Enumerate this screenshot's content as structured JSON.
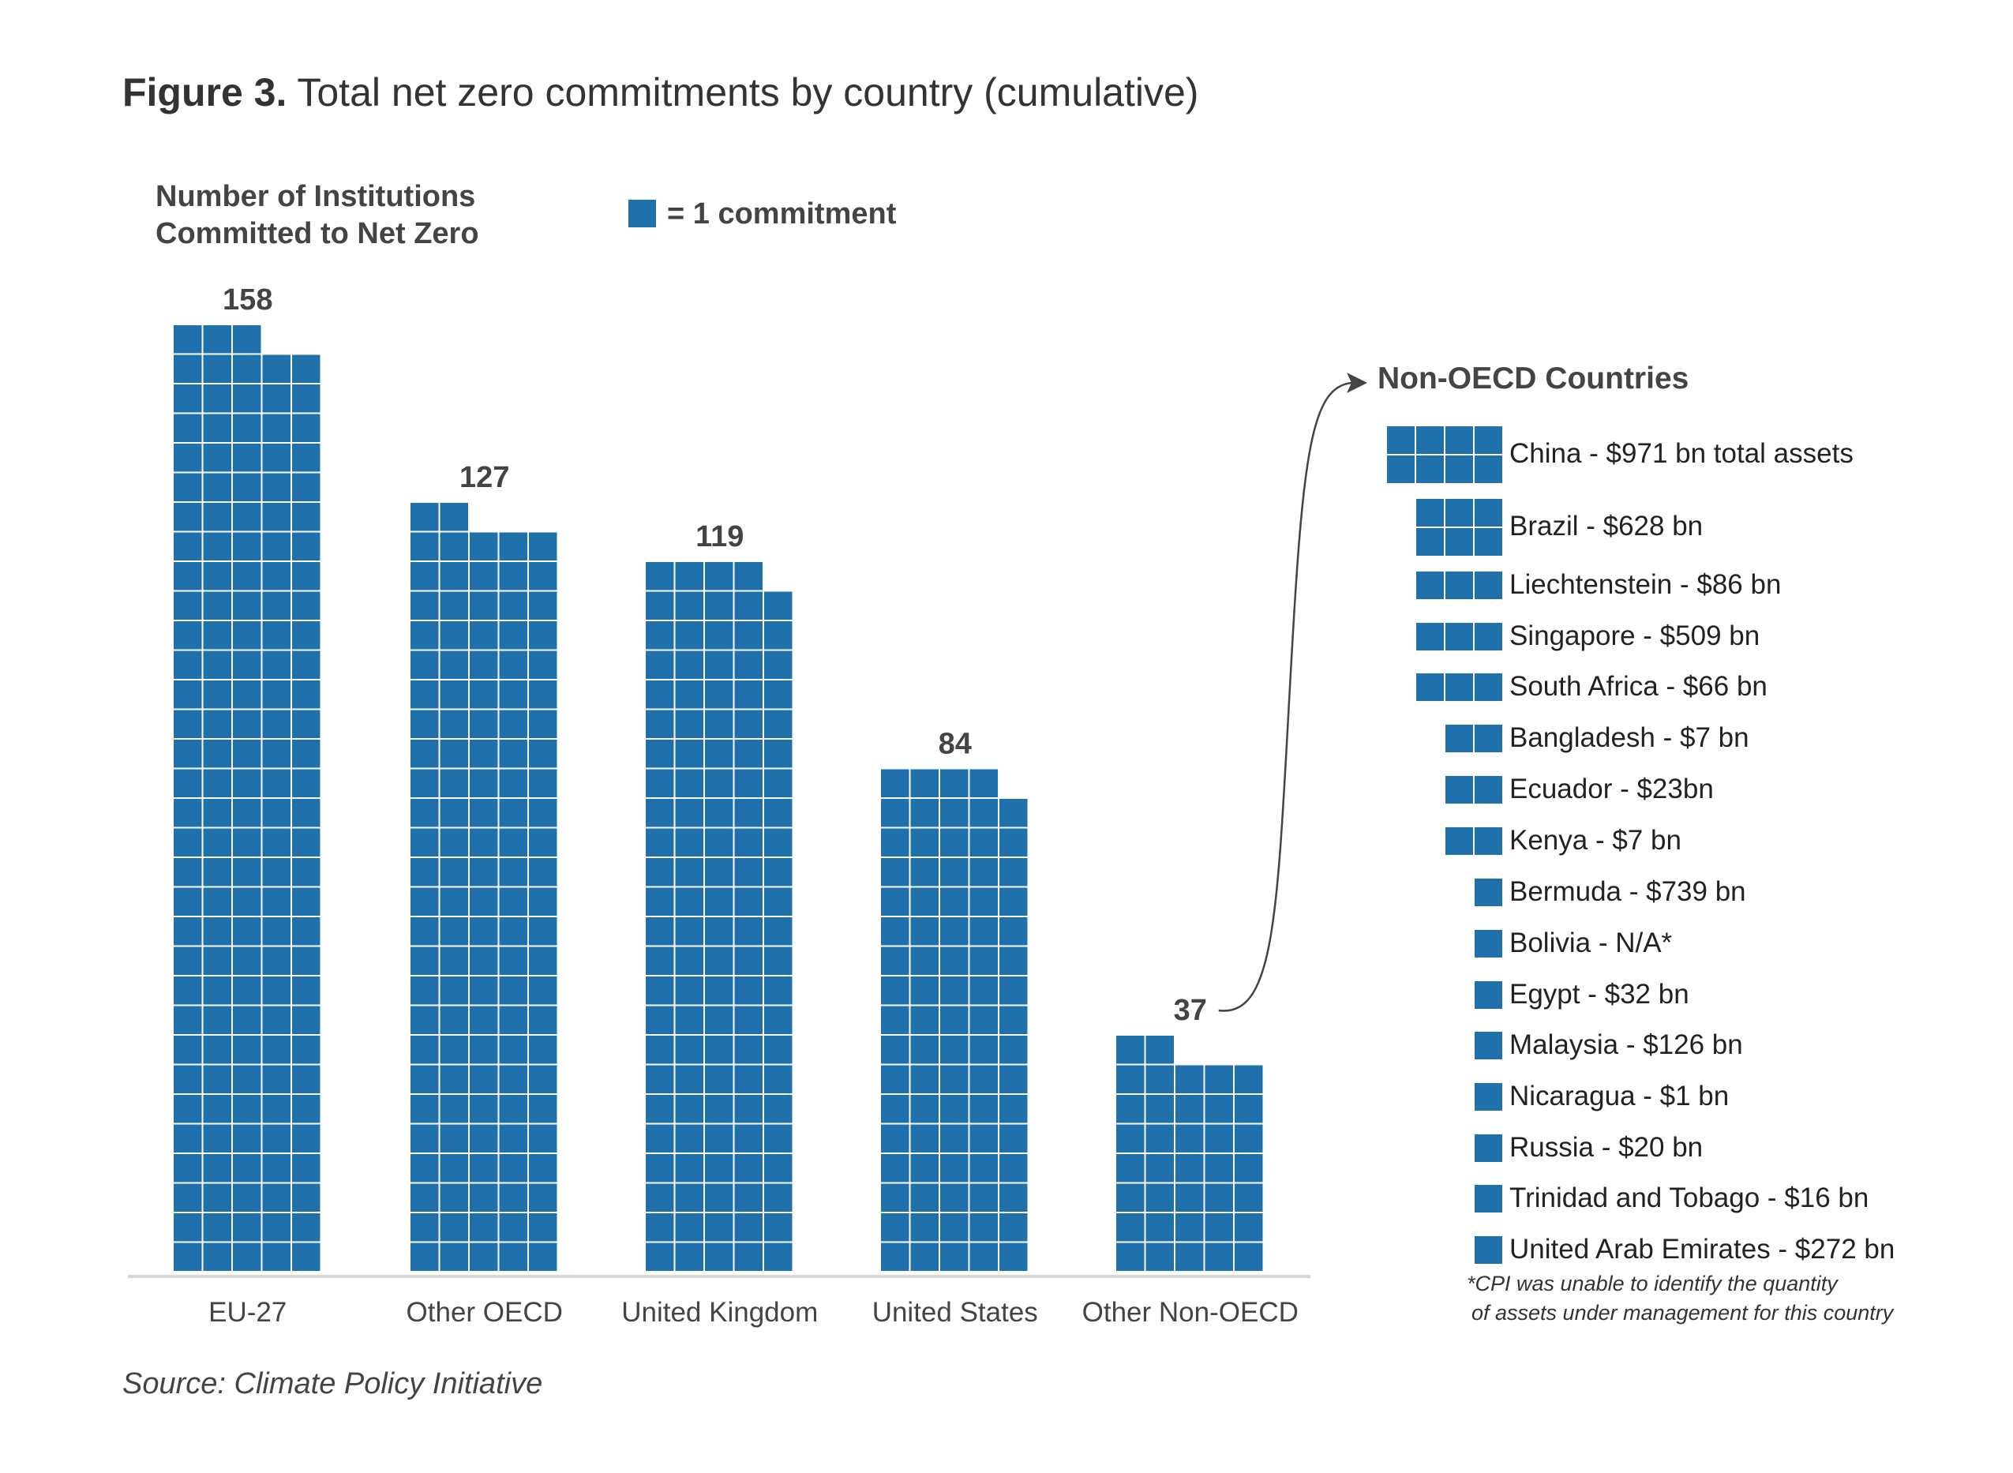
{
  "header": {
    "figure_label": "Figure 3.",
    "title": "Total net zero commitments by country (cumulative)"
  },
  "y_axis_label_line1": "Number of Institutions",
  "y_axis_label_line2": "Committed to Net Zero",
  "legend": {
    "text": "= 1 commitment"
  },
  "colors": {
    "square": "#2070ab",
    "axis": "#d6d6d6",
    "text": "#333333",
    "arrow": "#444444"
  },
  "chart_data": {
    "type": "bar",
    "unit_note": "each square = 1 commitment",
    "categories": [
      "EU-27",
      "Other OECD",
      "United Kingdom",
      "United States",
      "Other Non-OECD"
    ],
    "values": [
      158,
      127,
      119,
      84,
      37
    ],
    "ylabel": "Number of Institutions Committed to Net Zero"
  },
  "non_oecd": {
    "title": "Non-OECD Countries",
    "items": [
      {
        "label": "China - $971 bn total assets",
        "count": 8
      },
      {
        "label": "Brazil - $628 bn",
        "count": 6
      },
      {
        "label": "Liechtenstein - $86 bn",
        "count": 3
      },
      {
        "label": "Singapore - $509 bn",
        "count": 3
      },
      {
        "label": "South Africa - $66 bn",
        "count": 3
      },
      {
        "label": "Bangladesh - $7 bn",
        "count": 2
      },
      {
        "label": "Ecuador - $23bn",
        "count": 2
      },
      {
        "label": "Kenya - $7 bn",
        "count": 2
      },
      {
        "label": "Bermuda - $739 bn",
        "count": 1
      },
      {
        "label": "Bolivia - N/A*",
        "count": 1
      },
      {
        "label": "Egypt - $32 bn",
        "count": 1
      },
      {
        "label": "Malaysia - $126 bn",
        "count": 1
      },
      {
        "label": "Nicaragua - $1 bn",
        "count": 1
      },
      {
        "label": "Russia - $20 bn",
        "count": 1
      },
      {
        "label": "Trinidad and Tobago - $16 bn",
        "count": 1
      },
      {
        "label": "United Arab Emirates - $272 bn",
        "count": 1
      }
    ]
  },
  "footnote_line1": "*CPI was unable to identify the quantity",
  "footnote_line2": "of assets under management for this country",
  "source": "Source: Climate Policy Initiative"
}
